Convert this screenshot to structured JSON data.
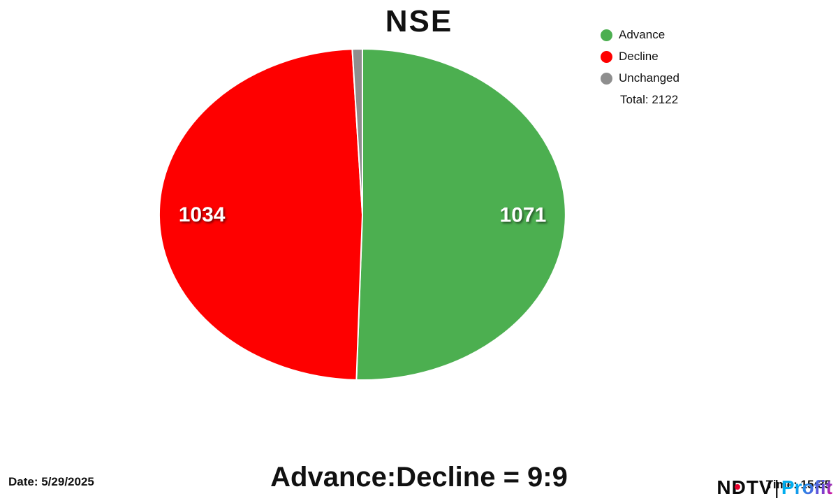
{
  "title": "NSE",
  "legend": {
    "items": [
      {
        "label": "Advance",
        "color": "#4caf50"
      },
      {
        "label": "Decline",
        "color": "#fe0000"
      },
      {
        "label": "Unchanged",
        "color": "#8e8e8e"
      }
    ],
    "total_label": "Total: 2122"
  },
  "footer": {
    "ratio_text": "Advance:Decline = 9:9",
    "date_text": "Date: 5/29/2025",
    "time_text": "Time: 15:35",
    "logo": {
      "ndtv": "NDTV",
      "separator": "|",
      "profit": "Profit"
    }
  },
  "chart_data": {
    "type": "pie",
    "title": "NSE",
    "slices": [
      {
        "label": "Advance",
        "value": 1071,
        "color": "#4caf50",
        "show_label": true
      },
      {
        "label": "Decline",
        "value": 1034,
        "color": "#fe0000",
        "show_label": true
      },
      {
        "label": "Unchanged",
        "value": 17,
        "color": "#8e8e8e",
        "show_label": false
      }
    ],
    "total": 2122,
    "start_angle_deg": -90,
    "direction": "clockwise",
    "legend_position": "top-right",
    "annotations": [
      "Advance:Decline = 9:9",
      "Date: 5/29/2025",
      "Time: 15:35"
    ]
  }
}
